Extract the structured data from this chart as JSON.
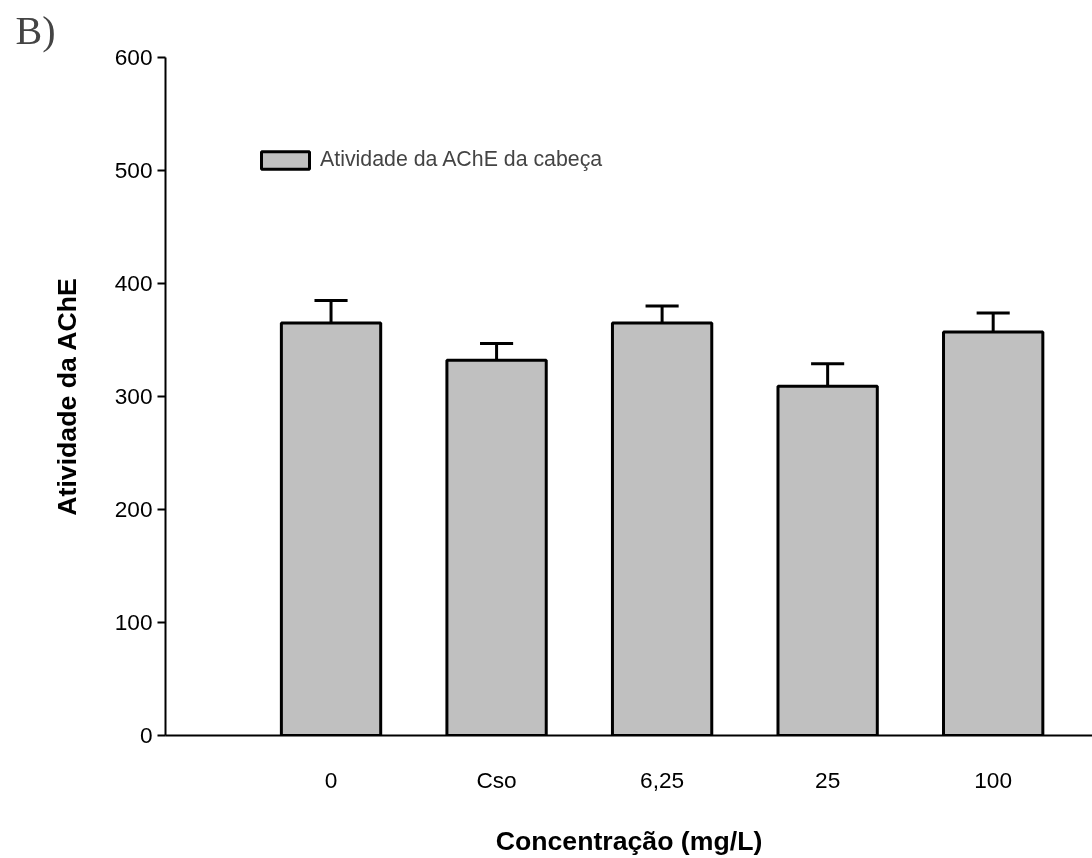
{
  "chart_data": {
    "type": "bar",
    "title": "B)",
    "xlabel": "Concentração (mg/L)",
    "ylabel": "Atividade da AChE",
    "categories": [
      "0",
      "Cso",
      "6,25",
      "25",
      "100"
    ],
    "series": [
      {
        "name": "Atividade da AChE da cabeça",
        "color": "#c0c0c0",
        "values": [
          365,
          332,
          365,
          309,
          357
        ],
        "errors": [
          [
            365,
            385
          ],
          [
            332,
            347
          ],
          [
            365,
            380
          ],
          [
            309,
            329
          ],
          [
            357,
            374
          ]
        ]
      }
    ],
    "ylim": [
      0,
      600
    ],
    "yticks": [
      0,
      100,
      200,
      300,
      400,
      500,
      600
    ],
    "grid": false,
    "legend": "top left"
  }
}
